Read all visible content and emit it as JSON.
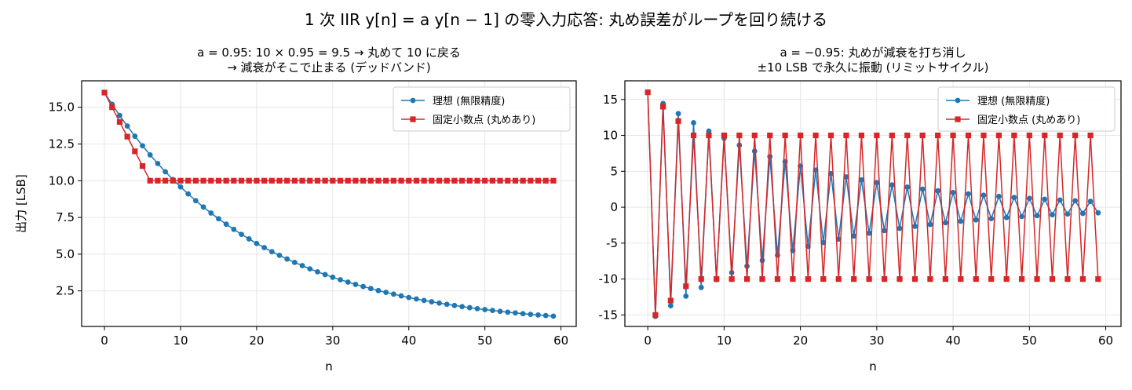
{
  "figure": {
    "suptitle": "1 次 IIR y[n] = a y[n − 1] の零入力応答: 丸め誤差がループを回り続ける"
  },
  "colors": {
    "ideal": "#1f77b4",
    "fixed": "#d62728",
    "grid": "#e6e6e6",
    "axis": "#000000"
  },
  "chart_data": [
    {
      "type": "line",
      "title_lines": [
        "a = 0.95: 10 × 0.95 = 9.5 → 丸めて 10 に戻る",
        "→ 減衰がそこで止まる (デッドバンド)"
      ],
      "xlabel": "n",
      "ylabel": "出力 [LSB]",
      "xlim": [
        -3,
        62
      ],
      "ylim": [
        0.08,
        16.8
      ],
      "xticks": [
        0,
        10,
        20,
        30,
        40,
        50,
        60
      ],
      "xtick_labels": [
        "0",
        "10",
        "20",
        "30",
        "40",
        "50",
        "60"
      ],
      "yticks": [
        2.5,
        5.0,
        7.5,
        10.0,
        12.5,
        15.0
      ],
      "ytick_labels": [
        "2.5",
        "5.0",
        "7.5",
        "10.0",
        "12.5",
        "15.0"
      ],
      "grid": true,
      "legend_position": "top-right",
      "x_range": [
        0,
        59
      ],
      "series": [
        {
          "name": "理想 (無限精度)",
          "marker": "circle",
          "color": "#1f77b4",
          "values": [
            16.0,
            15.2,
            14.44,
            13.72,
            13.03,
            12.38,
            11.76,
            11.17,
            10.61,
            10.08,
            9.58,
            9.1,
            8.64,
            8.21,
            7.8,
            7.41,
            7.04,
            6.69,
            6.35,
            6.04,
            5.73,
            5.45,
            5.17,
            4.92,
            4.67,
            4.44,
            4.22,
            4.0,
            3.8,
            3.61,
            3.43,
            3.26,
            3.1,
            2.94,
            2.8,
            2.66,
            2.52,
            2.4,
            2.28,
            2.16,
            2.05,
            1.95,
            1.85,
            1.76,
            1.67,
            1.59,
            1.51,
            1.43,
            1.36,
            1.29,
            1.23,
            1.17,
            1.11,
            1.05,
            1.0,
            0.95,
            0.9,
            0.86,
            0.82,
            0.78
          ]
        },
        {
          "name": "固定小数点 (丸めあり)",
          "marker": "square",
          "color": "#d62728",
          "values": [
            16,
            15,
            14,
            13,
            12,
            11,
            10,
            10,
            10,
            10,
            10,
            10,
            10,
            10,
            10,
            10,
            10,
            10,
            10,
            10,
            10,
            10,
            10,
            10,
            10,
            10,
            10,
            10,
            10,
            10,
            10,
            10,
            10,
            10,
            10,
            10,
            10,
            10,
            10,
            10,
            10,
            10,
            10,
            10,
            10,
            10,
            10,
            10,
            10,
            10,
            10,
            10,
            10,
            10,
            10,
            10,
            10,
            10,
            10,
            10
          ]
        }
      ]
    },
    {
      "type": "line",
      "title_lines": [
        "a = −0.95: 丸めが減衰を打ち消し",
        "±10 LSB で永久に振動 (リミットサイクル)"
      ],
      "xlabel": "n",
      "ylabel": "",
      "xlim": [
        -3,
        62
      ],
      "ylim": [
        -16.6,
        17.6
      ],
      "xticks": [
        0,
        10,
        20,
        30,
        40,
        50,
        60
      ],
      "xtick_labels": [
        "0",
        "10",
        "20",
        "30",
        "40",
        "50",
        "60"
      ],
      "yticks": [
        -15,
        -10,
        -5,
        0,
        5,
        10,
        15
      ],
      "ytick_labels": [
        "-15",
        "-10",
        "-5",
        "0",
        "5",
        "10",
        "15"
      ],
      "grid": true,
      "legend_position": "top-right",
      "x_range": [
        0,
        59
      ],
      "series": [
        {
          "name": "理想 (無限精度)",
          "marker": "circle",
          "color": "#1f77b4",
          "values": [
            16.0,
            -15.2,
            14.44,
            -13.72,
            13.03,
            -12.38,
            11.76,
            -11.17,
            10.61,
            -10.08,
            9.58,
            -9.1,
            8.64,
            -8.21,
            7.8,
            -7.41,
            7.04,
            -6.69,
            6.35,
            -6.04,
            5.73,
            -5.45,
            5.17,
            -4.92,
            4.67,
            -4.44,
            4.22,
            -4.0,
            3.8,
            -3.61,
            3.43,
            -3.26,
            3.1,
            -2.94,
            2.8,
            -2.66,
            2.52,
            -2.4,
            2.28,
            -2.16,
            2.05,
            -1.95,
            1.85,
            -1.76,
            1.67,
            -1.59,
            1.51,
            -1.43,
            1.36,
            -1.29,
            1.23,
            -1.17,
            1.11,
            -1.05,
            1.0,
            -0.95,
            0.9,
            -0.86,
            0.82,
            -0.78
          ]
        },
        {
          "name": "固定小数点 (丸めあり)",
          "marker": "square",
          "color": "#d62728",
          "values": [
            16,
            -15,
            14,
            -13,
            12,
            -11,
            10,
            -10,
            10,
            -10,
            10,
            -10,
            10,
            -10,
            10,
            -10,
            10,
            -10,
            10,
            -10,
            10,
            -10,
            10,
            -10,
            10,
            -10,
            10,
            -10,
            10,
            -10,
            10,
            -10,
            10,
            -10,
            10,
            -10,
            10,
            -10,
            10,
            -10,
            10,
            -10,
            10,
            -10,
            10,
            -10,
            10,
            -10,
            10,
            -10,
            10,
            -10,
            10,
            -10,
            10,
            -10,
            10,
            -10,
            10,
            -10
          ]
        }
      ]
    }
  ]
}
